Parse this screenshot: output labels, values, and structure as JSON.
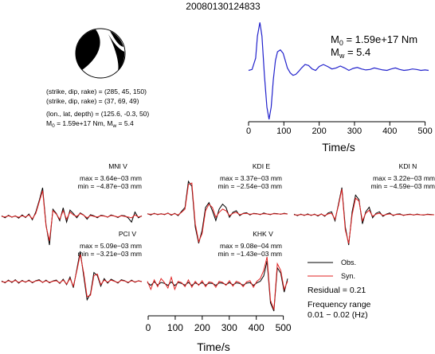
{
  "title": "20080130124833",
  "mechanism": {
    "planes": [
      "(strike, dip, rake) = (285, 45, 150)",
      "(strike, dip, rake) = (37, 69, 49)"
    ],
    "location": "(lon., lat, depth) = (125.6, -0.3, 50)",
    "moment_line": {
      "m0_prefix": "M",
      "m0_sub": "0",
      "m0_text": " = 1.59e+17 Nm, M",
      "mw_sub": "w",
      "mw_text": " = 5.4"
    }
  },
  "colors": {
    "stf": "#2222cc",
    "observed": "#000000",
    "synthetic": "#e02020"
  },
  "chart_data": [
    {
      "type": "line",
      "name": "source time function",
      "xlabel": "Time/s",
      "xlim": [
        0,
        510
      ],
      "x_ticks": [
        "0",
        "100",
        "200",
        "300",
        "400",
        "500"
      ],
      "annotation": {
        "m0_label": "M",
        "m0_sub": "0",
        "m0_value": " = 1.59e+17 Nm",
        "mw_label": "M",
        "mw_sub": "w",
        "mw_value": " = 5.4"
      },
      "series": [
        {
          "values_x": [
            0,
            10,
            20,
            25,
            32,
            38,
            45,
            52,
            58,
            64,
            70,
            76,
            82,
            90,
            98,
            104,
            110,
            118,
            126,
            134,
            142,
            150,
            160,
            170,
            180,
            190,
            200,
            212,
            224,
            236,
            248,
            260,
            272,
            284,
            296,
            308,
            320,
            332,
            344,
            356,
            368,
            380,
            392,
            404,
            416,
            428,
            440,
            452,
            464,
            476,
            488,
            500,
            510
          ],
          "values_y": [
            0.0,
            0.02,
            0.25,
            0.7,
            0.98,
            0.7,
            -0.1,
            -0.75,
            -1.0,
            -0.75,
            -0.2,
            0.2,
            0.38,
            0.42,
            0.35,
            0.2,
            0.05,
            -0.05,
            -0.1,
            -0.08,
            -0.02,
            0.05,
            0.12,
            0.1,
            0.03,
            0.0,
            0.08,
            0.12,
            0.08,
            0.03,
            0.05,
            0.09,
            0.05,
            0.0,
            0.04,
            0.06,
            0.03,
            0.01,
            0.02,
            0.05,
            0.03,
            0.01,
            0.0,
            0.03,
            0.05,
            0.02,
            0.0,
            0.01,
            0.03,
            0.02,
            0.0,
            0.01,
            0.0
          ]
        }
      ]
    },
    {
      "type": "line",
      "name": "waveforms",
      "xlabel": "Time/s",
      "xlim": [
        0,
        510
      ],
      "x_ticks": [
        "0",
        "100",
        "200",
        "300",
        "400",
        "500"
      ],
      "stations": [
        {
          "label": "MNI V",
          "max": "max = 3.64e−03 mm",
          "min": "min = −4.87e−03 mm",
          "obs": [
            0.02,
            -0.05,
            0.04,
            -0.03,
            0.02,
            -0.06,
            0.05,
            -0.04,
            0.08,
            -0.12,
            0.15,
            0.55,
            1.0,
            -0.3,
            -1.0,
            0.25,
            0.1,
            -0.15,
            0.3,
            -0.2,
            0.22,
            0.1,
            -0.05,
            0.12,
            0.05,
            -0.1,
            0.06,
            0.02,
            -0.05,
            0.04,
            0.02,
            -0.03,
            0.05,
            0.01,
            -0.04,
            0.03,
            0.02,
            -0.05,
            -0.2,
            0.15,
            -0.05,
            0.02
          ],
          "syn": [
            0.0,
            -0.02,
            0.02,
            -0.02,
            0.01,
            -0.03,
            0.02,
            -0.02,
            0.05,
            -0.08,
            0.1,
            0.5,
            0.9,
            -0.35,
            -0.85,
            0.2,
            0.08,
            -0.1,
            0.2,
            -0.1,
            0.15,
            0.05,
            0.0,
            0.1,
            0.04,
            -0.05,
            0.03,
            0.0,
            -0.02,
            0.02,
            0.01,
            -0.02,
            0.03,
            0.01,
            -0.02,
            0.02,
            0.0,
            -0.02,
            -0.05,
            0.05,
            -0.02,
            0.01
          ]
        },
        {
          "label": "KDI E",
          "max": "max = 3.37e−03 mm",
          "min": "min = −2.54e−03 mm",
          "obs": [
            0.01,
            -0.03,
            0.02,
            -0.02,
            0.01,
            -0.02,
            0.03,
            -0.04,
            0.02,
            -0.05,
            0.08,
            0.2,
            1.0,
            0.85,
            -0.4,
            -0.9,
            -0.5,
            0.2,
            0.35,
            0.1,
            -0.2,
            0.15,
            0.3,
            0.2,
            -0.1,
            0.05,
            0.1,
            -0.05,
            0.02,
            0.04,
            -0.03,
            0.02,
            0.01,
            -0.02,
            0.03,
            0.0,
            -0.02,
            0.02,
            0.01,
            -0.01,
            0.02,
            0.0
          ],
          "syn": [
            0.0,
            -0.01,
            0.01,
            -0.01,
            0.0,
            -0.01,
            0.02,
            -0.02,
            0.01,
            -0.03,
            0.05,
            0.15,
            0.9,
            0.95,
            -0.3,
            -0.85,
            -0.6,
            0.1,
            0.3,
            0.2,
            -0.1,
            0.05,
            0.15,
            0.1,
            -0.05,
            0.02,
            0.05,
            -0.02,
            0.01,
            0.02,
            -0.01,
            0.01,
            0.0,
            -0.01,
            0.01,
            0.0,
            -0.01,
            0.01,
            0.0,
            0.0,
            0.01,
            0.0
          ]
        },
        {
          "label": "KDI N",
          "max": "max = 3.22e−03 mm",
          "min": "min = −4.59e−03 mm",
          "obs": [
            0.02,
            -0.03,
            0.02,
            -0.02,
            0.03,
            -0.02,
            0.02,
            -0.04,
            0.03,
            -0.05,
            0.06,
            0.1,
            -0.2,
            0.35,
            0.9,
            -0.4,
            -1.0,
            0.1,
            0.65,
            0.5,
            -0.3,
            0.1,
            0.25,
            -0.1,
            0.05,
            0.1,
            -0.05,
            0.02,
            0.06,
            -0.03,
            0.02,
            0.03,
            -0.02,
            0.01,
            0.02,
            -0.01,
            0.02,
            0.0,
            -0.01,
            0.02,
            0.01,
            0.0
          ],
          "syn": [
            0.0,
            -0.01,
            0.01,
            -0.01,
            0.01,
            -0.01,
            0.01,
            -0.02,
            0.02,
            -0.03,
            0.03,
            0.05,
            -0.15,
            0.3,
            0.85,
            -0.5,
            -0.95,
            0.0,
            0.55,
            0.45,
            -0.2,
            0.05,
            0.15,
            -0.05,
            0.02,
            0.05,
            -0.02,
            0.01,
            0.03,
            -0.01,
            0.01,
            0.01,
            -0.01,
            0.0,
            0.01,
            0.0,
            0.01,
            0.0,
            0.0,
            0.01,
            0.0,
            0.0
          ]
        },
        {
          "label": "PCI V",
          "max": "max = 5.09e−03 mm",
          "min": "min = −3.21e−03 mm",
          "obs": [
            0.02,
            -0.04,
            0.05,
            -0.03,
            0.06,
            -0.05,
            0.04,
            -0.02,
            0.05,
            -0.04,
            0.03,
            0.06,
            -0.03,
            0.05,
            -0.04,
            0.02,
            0.05,
            -0.06,
            0.08,
            -0.1,
            0.15,
            -0.2,
            0.4,
            1.0,
            0.2,
            -0.6,
            -0.4,
            0.3,
            0.2,
            -0.15,
            0.1,
            -0.05,
            0.08,
            0.02,
            -0.05,
            0.06,
            0.03,
            -0.04,
            0.05,
            -0.02,
            0.03,
            0.0
          ],
          "syn": [
            0.0,
            -0.02,
            0.03,
            -0.01,
            0.04,
            -0.03,
            0.02,
            -0.01,
            0.03,
            -0.02,
            0.02,
            0.04,
            -0.02,
            0.03,
            -0.02,
            0.01,
            0.03,
            -0.04,
            0.05,
            -0.08,
            0.1,
            -0.15,
            0.35,
            0.9,
            0.3,
            -0.5,
            -0.45,
            0.2,
            0.25,
            -0.1,
            0.05,
            -0.02,
            0.05,
            0.01,
            -0.03,
            0.04,
            0.02,
            -0.02,
            0.03,
            -0.01,
            0.02,
            0.0
          ]
        },
        {
          "label": "KHK V",
          "max": "max = 9.08e−04 mm",
          "min": "min = −1.43e−03 mm",
          "obs": [
            0.05,
            -0.05,
            0.08,
            -0.04,
            0.06,
            0.02,
            -0.05,
            0.08,
            -0.06,
            0.05,
            0.02,
            -0.04,
            0.06,
            -0.05,
            0.04,
            -0.02,
            0.05,
            -0.04,
            0.03,
            0.02,
            -0.05,
            0.04,
            0.03,
            -0.02,
            0.05,
            -0.03,
            0.04,
            0.02,
            -0.04,
            0.03,
            0.05,
            -0.05,
            0.04,
            0.1,
            0.3,
            0.85,
            -0.7,
            -1.0,
            0.6,
            0.4,
            -0.3,
            0.2
          ],
          "syn": [
            0.1,
            -0.2,
            0.15,
            -0.1,
            0.2,
            0.05,
            -0.15,
            0.25,
            -0.2,
            0.1,
            0.05,
            -0.1,
            0.15,
            -0.12,
            0.1,
            -0.05,
            0.12,
            -0.1,
            0.08,
            0.05,
            -0.12,
            0.1,
            0.06,
            -0.05,
            0.12,
            -0.08,
            0.1,
            0.05,
            -0.1,
            0.08,
            0.12,
            -0.12,
            0.1,
            0.2,
            0.5,
            1.0,
            -0.6,
            -0.95,
            0.75,
            0.5,
            -0.2,
            0.1
          ]
        }
      ]
    }
  ],
  "legend": {
    "obs": "Obs.",
    "syn": "Syn."
  },
  "residual": "Residual = 0.21",
  "frequency": {
    "title": "Frequency range",
    "range": "0.01 − 0.02 (Hz)"
  }
}
